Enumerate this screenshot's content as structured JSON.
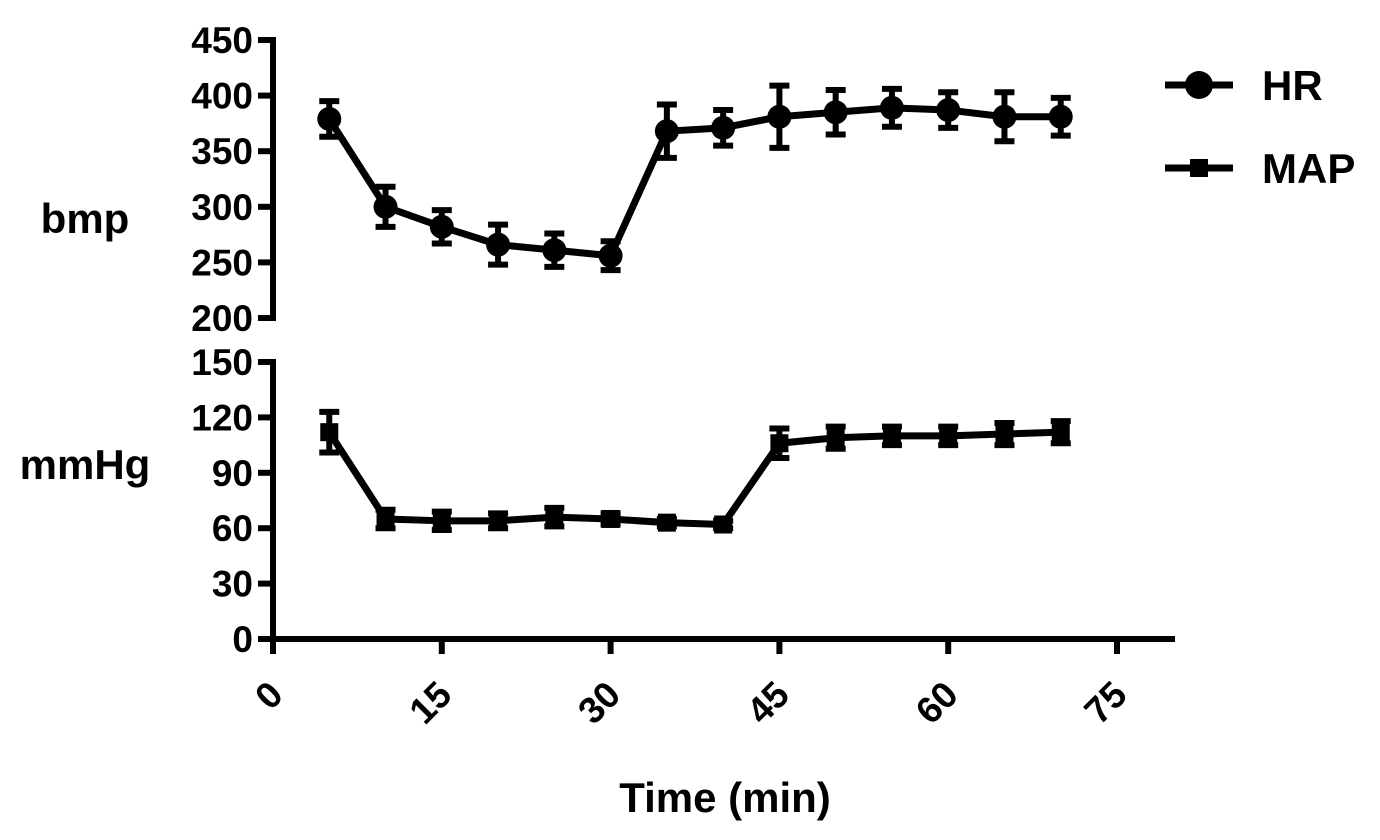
{
  "chart_data": [
    {
      "type": "line",
      "panel": "top",
      "title": "",
      "ylabel": "bmp",
      "xlabel": "",
      "ylim": [
        200,
        450
      ],
      "yticks": [
        200,
        250,
        300,
        350,
        400,
        450
      ],
      "ytick_labels": [
        "200",
        "250",
        "300",
        "350",
        "400",
        "450"
      ],
      "xlim": [
        0,
        80
      ],
      "grid": false,
      "series": [
        {
          "name": "HR",
          "marker": "circle",
          "x": [
            5,
            10,
            15,
            20,
            25,
            30,
            35,
            40,
            45,
            50,
            55,
            60,
            65,
            70
          ],
          "y": [
            379,
            300,
            282,
            266,
            261,
            256,
            368,
            371,
            381,
            385,
            389,
            387,
            381,
            381
          ],
          "err": [
            16,
            18,
            15,
            18,
            15,
            13,
            24,
            16,
            28,
            20,
            17,
            16,
            22,
            17
          ]
        }
      ]
    },
    {
      "type": "line",
      "panel": "bottom",
      "title": "",
      "ylabel": "mmHg",
      "xlabel": "Time (min)",
      "ylim": [
        0,
        150
      ],
      "yticks": [
        0,
        30,
        60,
        90,
        120,
        150
      ],
      "ytick_labels": [
        "0",
        "30",
        "60",
        "90",
        "120",
        "150"
      ],
      "xlim": [
        0,
        80
      ],
      "xticks": [
        0,
        15,
        30,
        45,
        60,
        75
      ],
      "xtick_labels": [
        "0",
        "15",
        "30",
        "45",
        "60",
        "75"
      ],
      "grid": false,
      "series": [
        {
          "name": "MAP",
          "marker": "square",
          "x": [
            5,
            10,
            15,
            20,
            25,
            30,
            35,
            40,
            45,
            50,
            55,
            60,
            65,
            70
          ],
          "y": [
            112,
            65,
            64,
            64,
            66,
            65,
            63,
            62,
            106,
            109,
            110,
            110,
            111,
            112
          ],
          "err": [
            11,
            5,
            5,
            4,
            5,
            3,
            2,
            2,
            8,
            6,
            5,
            5,
            6,
            6
          ]
        }
      ]
    }
  ],
  "legend": {
    "placement": "top-right",
    "items": [
      {
        "label": "HR",
        "marker": "circle"
      },
      {
        "label": "MAP",
        "marker": "square"
      }
    ]
  }
}
